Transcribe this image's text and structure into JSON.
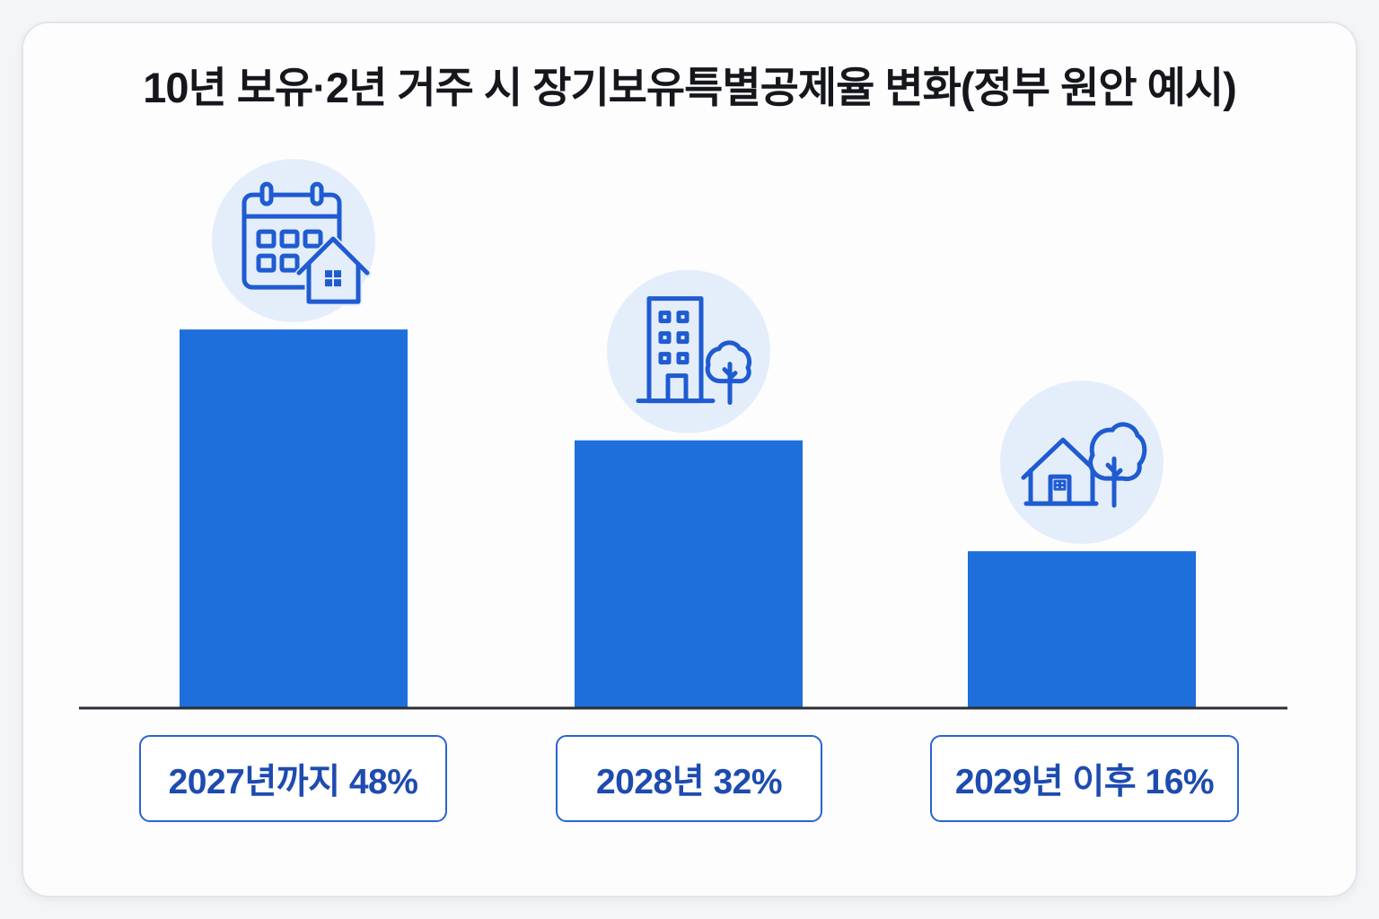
{
  "colors": {
    "page_background": "#f4f5f7",
    "card_background": "#fdfdfe",
    "card_border": "#e2e5ea",
    "title_text": "#15171c",
    "bar": "#1e6fdb",
    "icon_circle": "#e4eefb",
    "icon_stroke": "#1f5bd1",
    "label_border": "#2b63d3",
    "label_text": "#1d4bb0",
    "baseline": "#2b2f36"
  },
  "icons": [
    "calendar-house-icon",
    "building-tree-icon",
    "house-tree-icon"
  ],
  "chart_data": {
    "type": "bar",
    "title": "10년 보유·2년 거주 시 장기보유특별공제율 변화(정부 원안 예시)",
    "categories": [
      "2027년까지",
      "2028년",
      "2029년 이후"
    ],
    "values": [
      48,
      32,
      16
    ],
    "value_labels": [
      "48%",
      "32%",
      "16%"
    ],
    "grid": false,
    "legend": "none"
  }
}
